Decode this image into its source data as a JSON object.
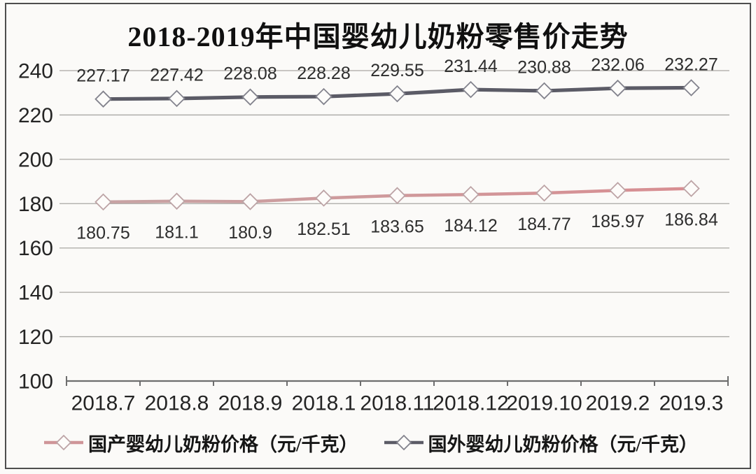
{
  "title": "2018-2019年中国婴幼儿奶粉零售价走势",
  "colors": {
    "background": "#fbfaf8",
    "frame_border": "#4e4e4e",
    "gridline": "#a9a7a3",
    "axis": "#6e6e6e",
    "text": "#242424"
  },
  "chart_data": {
    "type": "line",
    "title": "2018-2019年中国婴幼儿奶粉零售价走势",
    "categories": [
      "2018.7",
      "2018.8",
      "2018.9",
      "2018.1",
      "2018.11",
      "2018.12",
      "2019.10",
      "2019.2",
      "2019.3"
    ],
    "y_ticks": [
      100,
      120,
      140,
      160,
      180,
      200,
      220,
      240
    ],
    "ylim": [
      100,
      240
    ],
    "grid": true,
    "data_labels": true,
    "legend_position": "bottom",
    "series": [
      {
        "key": "domestic",
        "name": "国产婴幼儿奶粉价格（元/千克）",
        "values": [
          180.75,
          181.1,
          180.9,
          182.51,
          183.65,
          184.12,
          184.77,
          185.97,
          186.84
        ],
        "color": "#cf9598",
        "color_start": "#c7a3a4",
        "color_end": "#d88e92",
        "marker_stroke": "#bda4a6",
        "label_position": "below"
      },
      {
        "key": "foreign",
        "name": "国外婴幼儿奶粉价格（元/千克）",
        "values": [
          227.17,
          227.42,
          228.08,
          228.28,
          229.55,
          231.44,
          230.88,
          232.06,
          232.27
        ],
        "color": "#5b5b66",
        "marker_stroke": "#83838d",
        "label_position": "above"
      }
    ]
  }
}
